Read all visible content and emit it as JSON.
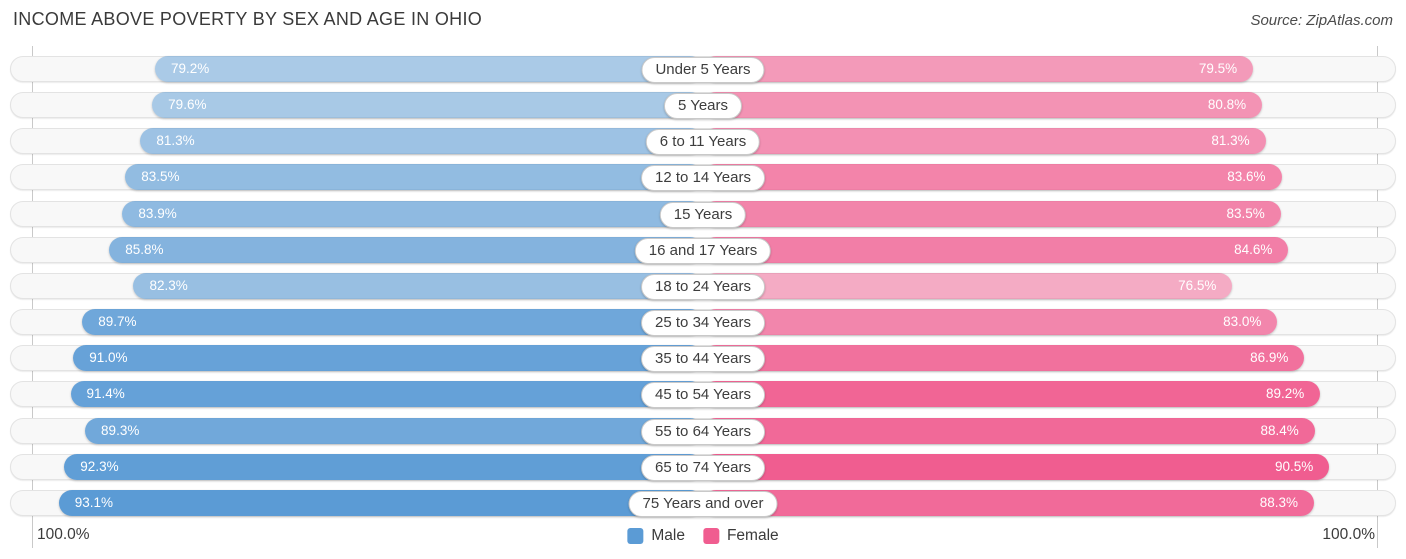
{
  "title": "INCOME ABOVE POVERTY BY SEX AND AGE IN OHIO",
  "source": "Source: ZipAtlas.com",
  "chart_data": {
    "type": "bar",
    "variant": "diverging-horizontal-pyramid",
    "title": "INCOME ABOVE POVERTY BY SEX AND AGE IN OHIO",
    "unit": "%",
    "xlim": [
      0,
      100
    ],
    "axis_left_label": "100.0%",
    "axis_right_label": "100.0%",
    "grid": "off",
    "legend_position": "bottom-center",
    "categories": [
      "Under 5 Years",
      "5 Years",
      "6 to 11 Years",
      "12 to 14 Years",
      "15 Years",
      "16 and 17 Years",
      "18 to 24 Years",
      "25 to 34 Years",
      "35 to 44 Years",
      "45 to 54 Years",
      "55 to 64 Years",
      "65 to 74 Years",
      "75 Years and over"
    ],
    "series": [
      {
        "name": "Male",
        "side": "left",
        "color": "#5b9bd5",
        "values": [
          79.2,
          79.6,
          81.3,
          83.5,
          83.9,
          85.8,
          82.3,
          89.7,
          91.0,
          91.4,
          89.3,
          92.3,
          93.1
        ]
      },
      {
        "name": "Female",
        "side": "right",
        "color": "#f05d90",
        "values": [
          79.5,
          80.8,
          81.3,
          83.6,
          83.5,
          84.6,
          76.5,
          83.0,
          86.9,
          89.2,
          88.4,
          90.5,
          88.3
        ]
      }
    ]
  },
  "legend": {
    "male": "Male",
    "female": "Female"
  },
  "styles": {
    "track_bg": "#f8f8f8",
    "track_border": "#e3e3e3",
    "axis_line_color": "#c9c9c9",
    "alpha_min": 0.5,
    "alpha_max": 1.0
  }
}
